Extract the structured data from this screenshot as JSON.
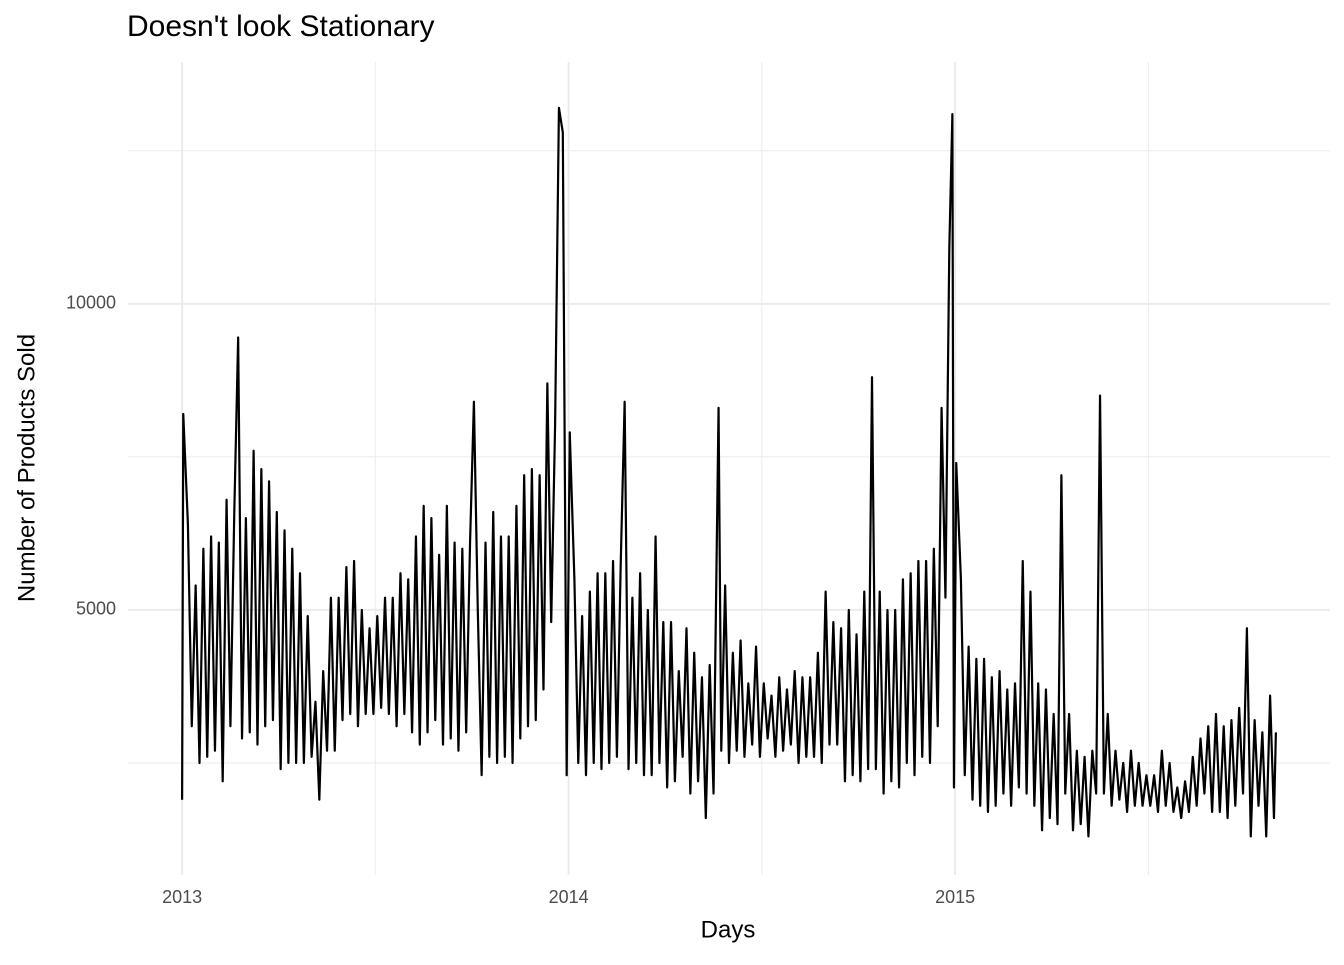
{
  "chart_data": {
    "type": "line",
    "title": "Doesn't look Stationary",
    "x_label": "Days",
    "y_label": "Number of Products Sold",
    "color": "#000000",
    "grid": true,
    "xlim": [
      2012.86,
      2015.97
    ],
    "xticks": [
      2013,
      2014,
      2015
    ],
    "x_minor_ticks": [
      2013.5,
      2014.5,
      2015.5
    ],
    "ylim": [
      670,
      13950
    ],
    "yticks": [
      5000,
      10000
    ],
    "y_minor_ticks": [
      2500,
      7500,
      12500
    ],
    "x": [
      2013.0,
      2013.003,
      2013.015,
      2013.025,
      2013.035,
      2013.045,
      2013.055,
      2013.065,
      2013.075,
      2013.085,
      2013.095,
      2013.105,
      2013.115,
      2013.125,
      2013.135,
      2013.145,
      2013.155,
      2013.165,
      2013.175,
      2013.185,
      2013.195,
      2013.205,
      2013.215,
      2013.225,
      2013.235,
      2013.245,
      2013.255,
      2013.265,
      2013.275,
      2013.285,
      2013.295,
      2013.305,
      2013.315,
      2013.325,
      2013.335,
      2013.345,
      2013.355,
      2013.365,
      2013.375,
      2013.385,
      2013.395,
      2013.405,
      2013.415,
      2013.425,
      2013.435,
      2013.445,
      2013.455,
      2013.465,
      2013.475,
      2013.485,
      2013.495,
      2013.505,
      2013.515,
      2013.525,
      2013.535,
      2013.545,
      2013.555,
      2013.565,
      2013.575,
      2013.585,
      2013.595,
      2013.605,
      2013.615,
      2013.625,
      2013.635,
      2013.645,
      2013.655,
      2013.665,
      2013.675,
      2013.685,
      2013.695,
      2013.705,
      2013.715,
      2013.725,
      2013.735,
      2013.745,
      2013.755,
      2013.765,
      2013.775,
      2013.785,
      2013.795,
      2013.805,
      2013.815,
      2013.825,
      2013.835,
      2013.845,
      2013.855,
      2013.865,
      2013.875,
      2013.885,
      2013.895,
      2013.905,
      2013.915,
      2013.925,
      2013.935,
      2013.945,
      2013.955,
      2013.965,
      2013.975,
      2013.985,
      2013.995,
      2014.003,
      2014.015,
      2014.025,
      2014.035,
      2014.045,
      2014.055,
      2014.065,
      2014.075,
      2014.085,
      2014.095,
      2014.105,
      2014.115,
      2014.125,
      2014.135,
      2014.145,
      2014.155,
      2014.165,
      2014.175,
      2014.185,
      2014.195,
      2014.205,
      2014.215,
      2014.225,
      2014.235,
      2014.245,
      2014.255,
      2014.265,
      2014.275,
      2014.285,
      2014.295,
      2014.305,
      2014.315,
      2014.325,
      2014.335,
      2014.345,
      2014.355,
      2014.365,
      2014.375,
      2014.388,
      2014.395,
      2014.405,
      2014.415,
      2014.425,
      2014.435,
      2014.445,
      2014.455,
      2014.465,
      2014.475,
      2014.485,
      2014.495,
      2014.505,
      2014.515,
      2014.525,
      2014.535,
      2014.545,
      2014.555,
      2014.565,
      2014.575,
      2014.585,
      2014.595,
      2014.605,
      2014.615,
      2014.625,
      2014.635,
      2014.645,
      2014.655,
      2014.665,
      2014.675,
      2014.685,
      2014.695,
      2014.705,
      2014.715,
      2014.725,
      2014.735,
      2014.745,
      2014.755,
      2014.765,
      2014.775,
      2014.785,
      2014.795,
      2014.805,
      2014.815,
      2014.825,
      2014.835,
      2014.845,
      2014.855,
      2014.865,
      2014.875,
      2014.885,
      2014.895,
      2014.905,
      2014.915,
      2014.925,
      2014.935,
      2014.945,
      2014.955,
      2014.965,
      2014.975,
      2014.985,
      2014.993,
      2014.997,
      2015.003,
      2015.015,
      2015.025,
      2015.035,
      2015.045,
      2015.055,
      2015.065,
      2015.075,
      2015.085,
      2015.095,
      2015.105,
      2015.115,
      2015.125,
      2015.135,
      2015.145,
      2015.155,
      2015.165,
      2015.175,
      2015.185,
      2015.195,
      2015.205,
      2015.215,
      2015.225,
      2015.235,
      2015.245,
      2015.255,
      2015.265,
      2015.275,
      2015.285,
      2015.295,
      2015.305,
      2015.315,
      2015.325,
      2015.335,
      2015.345,
      2015.355,
      2015.365,
      2015.375,
      2015.385,
      2015.395,
      2015.405,
      2015.415,
      2015.425,
      2015.435,
      2015.445,
      2015.455,
      2015.465,
      2015.475,
      2015.485,
      2015.495,
      2015.505,
      2015.515,
      2015.525,
      2015.535,
      2015.545,
      2015.555,
      2015.565,
      2015.575,
      2015.585,
      2015.595,
      2015.605,
      2015.615,
      2015.625,
      2015.635,
      2015.645,
      2015.655,
      2015.665,
      2015.675,
      2015.685,
      2015.695,
      2015.705,
      2015.715,
      2015.725,
      2015.735,
      2015.745,
      2015.755,
      2015.765,
      2015.775,
      2015.785,
      2015.795,
      2015.805,
      2015.815,
      2015.825,
      2015.83
    ],
    "values": [
      1900,
      8200,
      6400,
      3100,
      5400,
      2500,
      6000,
      2600,
      6200,
      2700,
      6100,
      2200,
      6800,
      3100,
      6600,
      9450,
      2900,
      6500,
      3000,
      7600,
      2800,
      7300,
      3100,
      7100,
      3200,
      6600,
      2400,
      6300,
      2500,
      6000,
      2500,
      5600,
      2500,
      4900,
      2600,
      3500,
      1900,
      4000,
      2700,
      5200,
      2700,
      5200,
      3200,
      5700,
      3300,
      5800,
      3100,
      5000,
      3300,
      4700,
      3300,
      4900,
      3400,
      5200,
      3300,
      5200,
      3100,
      5600,
      3300,
      5500,
      3000,
      6200,
      2800,
      6700,
      3000,
      6500,
      3200,
      5900,
      2800,
      6700,
      2900,
      6100,
      2700,
      6000,
      3000,
      6100,
      8400,
      5000,
      2300,
      6100,
      2600,
      6600,
      2500,
      6200,
      2600,
      6200,
      2500,
      6700,
      2900,
      7200,
      3100,
      7300,
      3200,
      7200,
      3700,
      8700,
      4800,
      8000,
      13200,
      12800,
      2300,
      7900,
      5500,
      2500,
      4900,
      2300,
      5300,
      2500,
      5600,
      2400,
      5600,
      2500,
      5800,
      2600,
      5800,
      8400,
      2400,
      5200,
      2500,
      5600,
      2300,
      5000,
      2300,
      6200,
      2500,
      4800,
      2100,
      4800,
      2200,
      4000,
      2600,
      4700,
      2000,
      4300,
      2200,
      3900,
      1600,
      4100,
      2000,
      8300,
      2700,
      5400,
      2500,
      4300,
      2700,
      4500,
      2600,
      3800,
      2800,
      4400,
      2600,
      3800,
      2900,
      3600,
      2600,
      3900,
      2700,
      3700,
      2800,
      4000,
      2500,
      3900,
      2600,
      3900,
      2600,
      4300,
      2500,
      5300,
      2800,
      4800,
      2800,
      4700,
      2200,
      5000,
      2300,
      4600,
      2200,
      5300,
      2400,
      8800,
      2400,
      5300,
      2000,
      5000,
      2200,
      5000,
      2100,
      5500,
      2500,
      5600,
      2300,
      5800,
      2600,
      5800,
      2500,
      6000,
      3100,
      8300,
      5200,
      10900,
      13100,
      2100,
      7400,
      5500,
      2300,
      4400,
      1900,
      4200,
      1800,
      4200,
      1700,
      3900,
      1800,
      4000,
      2000,
      3700,
      1800,
      3800,
      2100,
      5800,
      2000,
      5300,
      1800,
      3800,
      1400,
      3700,
      1600,
      3300,
      1500,
      7200,
      2000,
      3300,
      1400,
      2700,
      1500,
      2600,
      1300,
      2700,
      2000,
      8500,
      2000,
      3300,
      1800,
      2700,
      1900,
      2500,
      1700,
      2700,
      1800,
      2500,
      1800,
      2300,
      1800,
      2300,
      1700,
      2700,
      1800,
      2500,
      1700,
      2100,
      1600,
      2200,
      1700,
      2600,
      1800,
      2900,
      2000,
      3100,
      1700,
      3300,
      1700,
      3100,
      1600,
      3200,
      1800,
      3400,
      2000,
      4700,
      1300,
      3200,
      1800,
      3000,
      1300,
      3600,
      1600,
      3000
    ]
  }
}
